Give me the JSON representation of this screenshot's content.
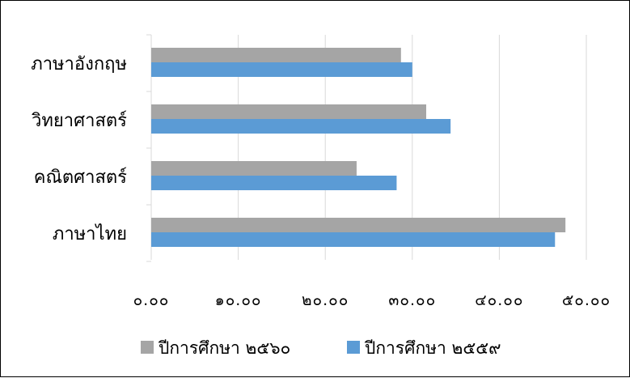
{
  "chart_data": {
    "type": "bar",
    "orientation": "horizontal",
    "categories": [
      "ภาษาอังกฤษ",
      "วิทยาศาสตร์",
      "คณิตศาสตร์",
      "ภาษาไทย"
    ],
    "series": [
      {
        "name": "ปีการศึกษา ๒๕๖๐",
        "color": "#a5a5a5",
        "values": [
          28.7,
          31.6,
          23.6,
          47.6
        ]
      },
      {
        "name": "ปีการศึกษา ๒๕๕๙",
        "color": "#5b9bd5",
        "values": [
          30.0,
          34.4,
          28.2,
          46.4
        ]
      }
    ],
    "xlim": [
      0,
      50
    ],
    "x_ticks": [
      0,
      10,
      20,
      30,
      40,
      50
    ],
    "x_tick_labels": [
      "๐.๐๐",
      "๑๐.๐๐",
      "๒๐.๐๐",
      "๓๐.๐๐",
      "๔๐.๐๐",
      "๕๐.๐๐"
    ],
    "grid": "vertical",
    "legend_position": "bottom",
    "title": "",
    "xlabel": "",
    "ylabel": ""
  }
}
